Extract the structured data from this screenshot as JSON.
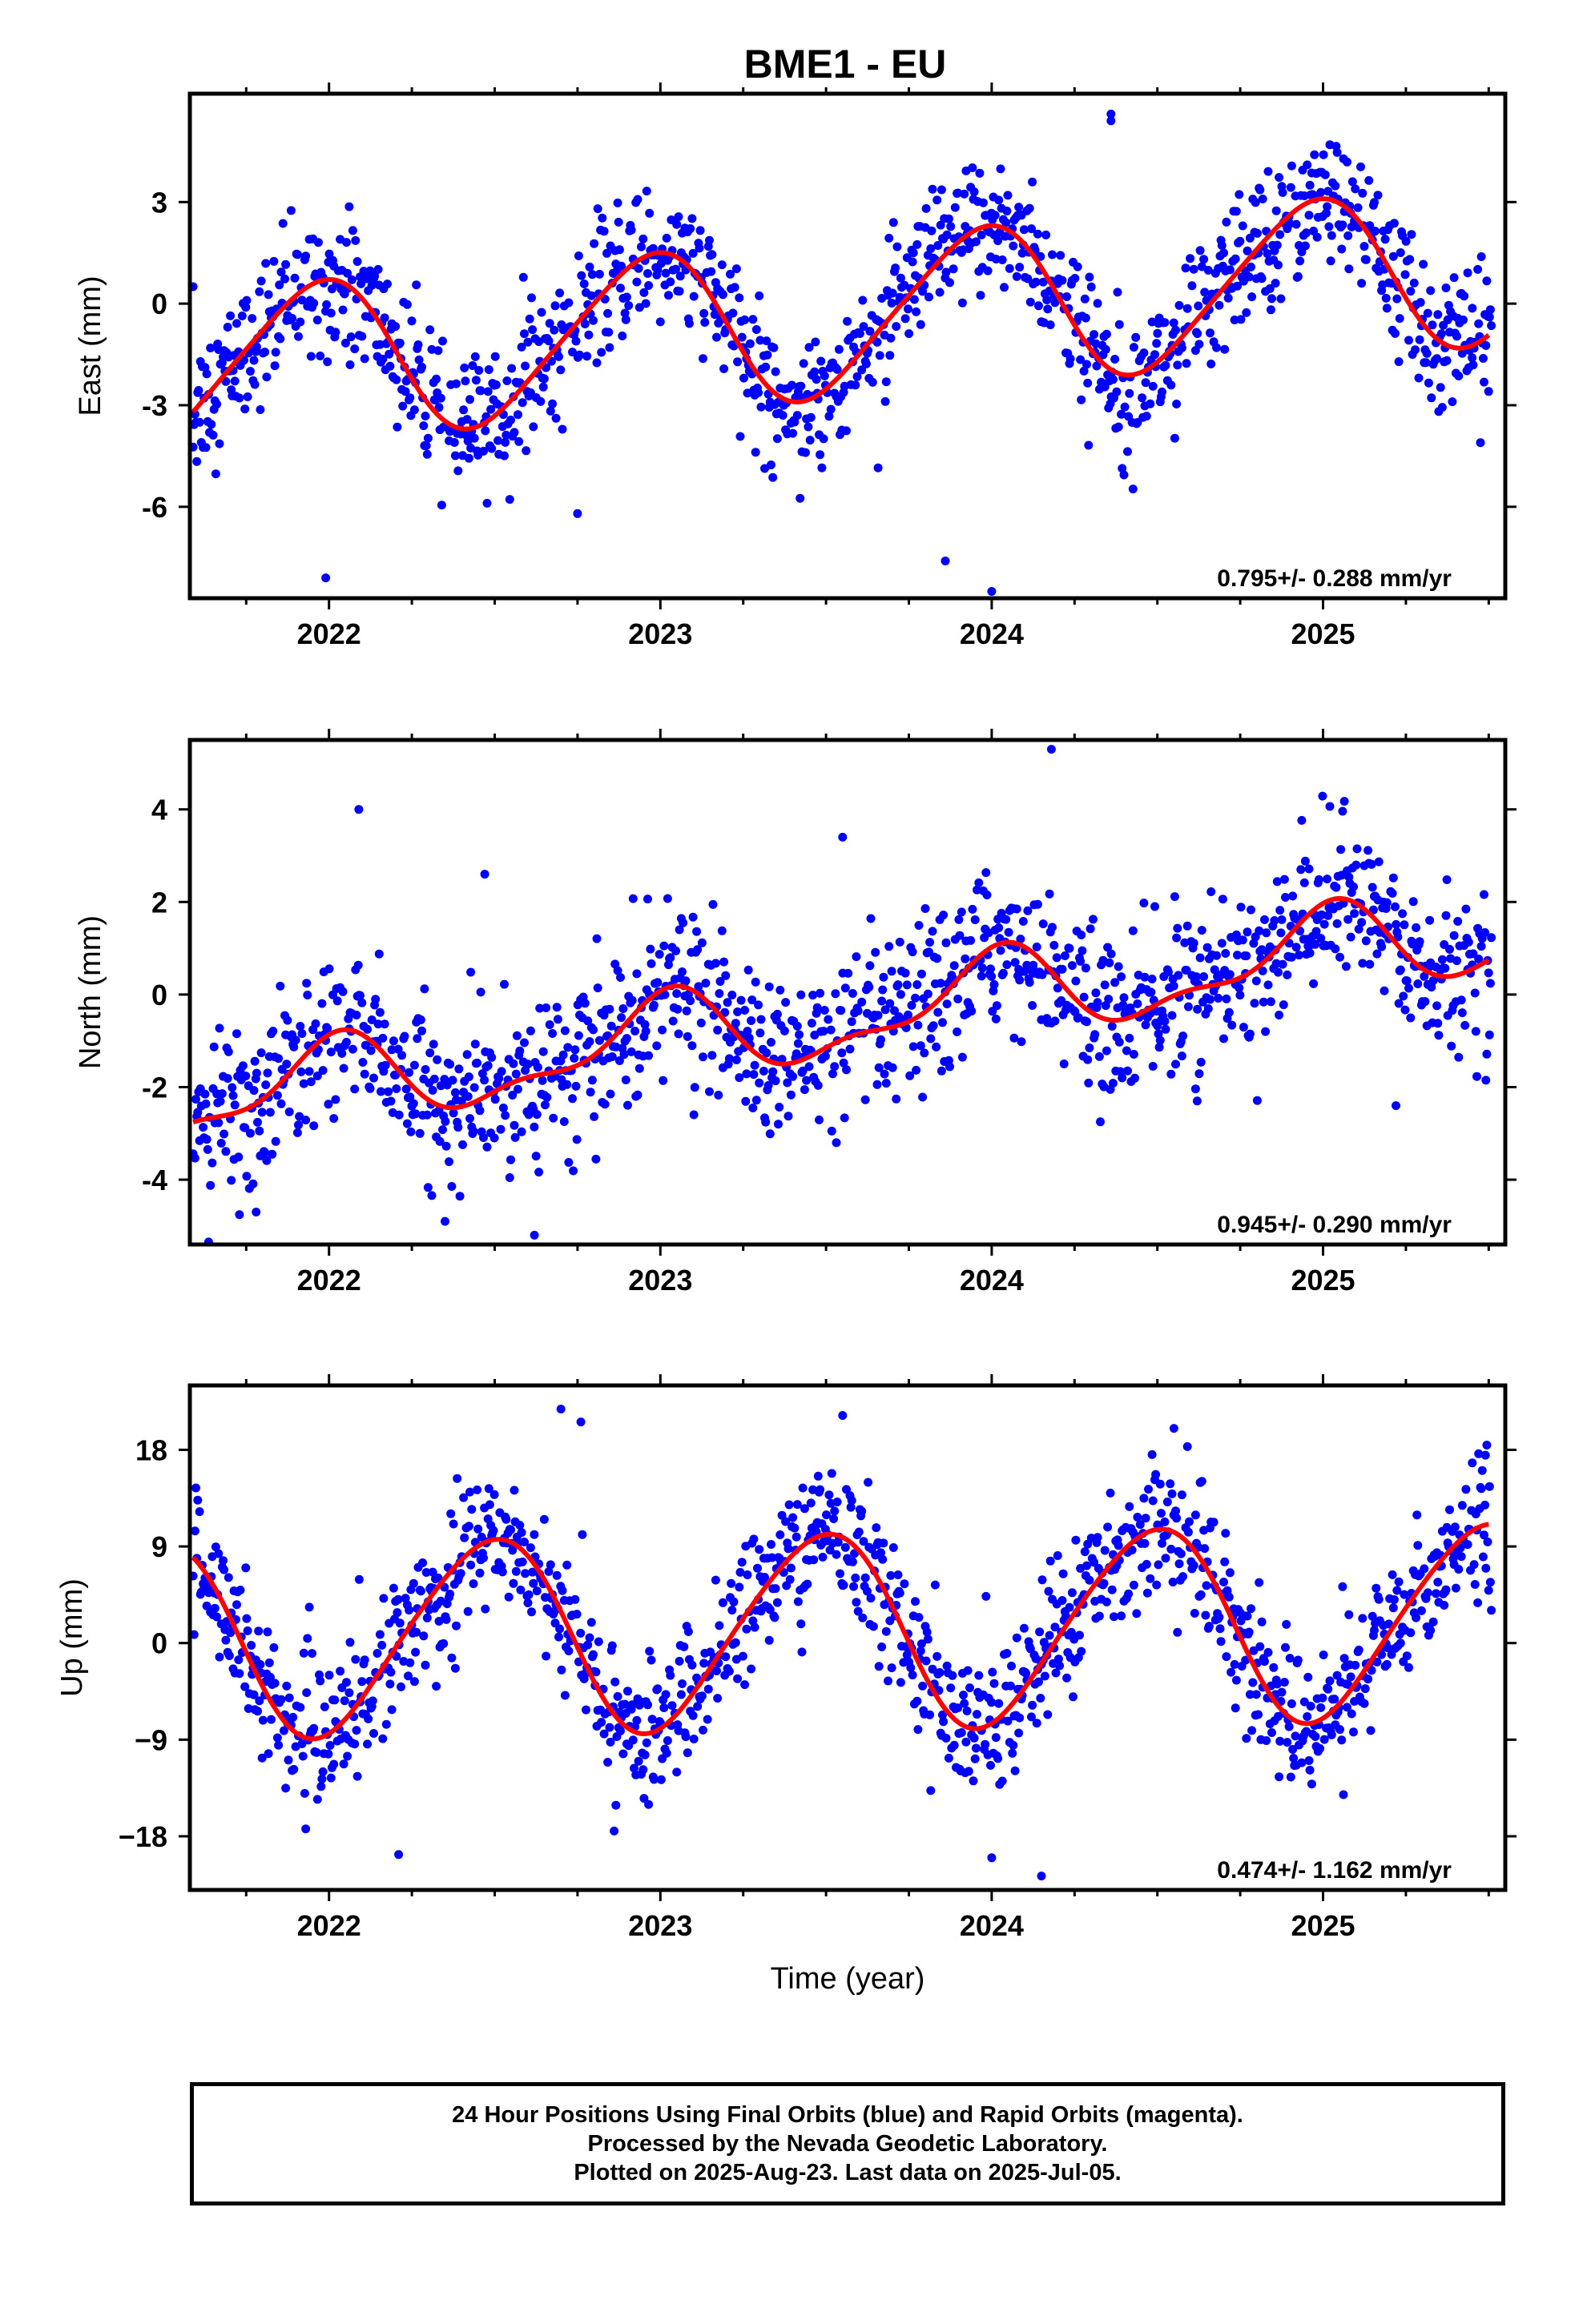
{
  "title": "BME1 - EU",
  "colors": {
    "points": "#0000ff",
    "fit": "#ff0000",
    "frame": "#000000"
  },
  "chart_data": [
    {
      "type": "scatter",
      "name": "east",
      "ylabel": "East (mm)",
      "ylim": [
        -8.7,
        6.2
      ],
      "xlim": [
        2021.58,
        2025.55
      ],
      "yticks": [
        -6,
        -3,
        0,
        3
      ],
      "xticks": [
        2022,
        2023,
        2024,
        2025
      ],
      "rate_text": "0.795+/- 0.288 mm/yr",
      "model": {
        "offset": -0.45,
        "trend": 0.795,
        "a1": 2.3,
        "p1": 1.85,
        "a2": 0.3,
        "p2": 0.5
      },
      "scatter_sd": 1.0,
      "outliers": [
        [
          2021.59,
          0.5
        ],
        [
          2021.99,
          -8.1
        ],
        [
          2022.75,
          -6.2
        ],
        [
          2023.86,
          -7.6
        ],
        [
          2024.0,
          -8.5
        ],
        [
          2024.36,
          5.6
        ],
        [
          2024.36,
          5.4
        ],
        [
          2025.45,
          -1.6
        ]
      ],
      "series": [
        {
          "name": "24 Hour Positions Using Final Orbits (blue)",
          "points_desc": "daily solutions"
        },
        {
          "name": "fit",
          "points_desc": "red model curve"
        }
      ]
    },
    {
      "type": "scatter",
      "name": "north",
      "ylabel": "North (mm)",
      "ylim": [
        -5.4,
        5.5
      ],
      "xlim": [
        2021.58,
        2025.55
      ],
      "yticks": [
        -4,
        -2,
        0,
        2,
        4
      ],
      "xticks": [
        2022,
        2023,
        2024,
        2025
      ],
      "rate_text": "0.945+/- 0.290 mm/yr",
      "model": {
        "offset": -0.55,
        "trend": 0.945,
        "a1": 0.85,
        "p1": 1.55,
        "a2": 0.35,
        "p2": 0.8
      },
      "scatter_sd": 0.85,
      "outliers": [
        [
          2022.09,
          4.0
        ],
        [
          2022.47,
          2.6
        ],
        [
          2022.62,
          -5.2
        ],
        [
          2022.35,
          -4.9
        ],
        [
          2021.78,
          -4.7
        ],
        [
          2024.18,
          5.3
        ],
        [
          2023.55,
          3.4
        ],
        [
          2024.62,
          -2.3
        ],
        [
          2025.22,
          -2.4
        ]
      ],
      "series": [
        {
          "name": "24 Hour Positions Using Final Orbits (blue)",
          "points_desc": "daily solutions"
        },
        {
          "name": "fit",
          "points_desc": "red model curve"
        }
      ]
    },
    {
      "type": "scatter",
      "name": "up",
      "ylabel": "Up (mm)",
      "ylim": [
        -23,
        24
      ],
      "xlim": [
        2021.58,
        2025.55
      ],
      "yticks": [
        -18,
        -9,
        0,
        9,
        18
      ],
      "xticks": [
        2022,
        2023,
        2024,
        2025
      ],
      "xlabel": "Time (year)",
      "rate_text": "0.474+/- 1.162 mm/yr",
      "model": {
        "offset": 1.2,
        "trend": 0.474,
        "a1": 9.0,
        "p1": 4.85,
        "a2": 0.9,
        "p2": 0.0
      },
      "scatter_sd": 3.2,
      "outliers": [
        [
          2022.7,
          21.8
        ],
        [
          2022.76,
          20.6
        ],
        [
          2022.21,
          -19.7
        ],
        [
          2024.0,
          -20.0
        ],
        [
          2024.15,
          -21.7
        ],
        [
          2023.55,
          21.2
        ],
        [
          2024.55,
          20.0
        ],
        [
          2025.49,
          17.5
        ]
      ],
      "series": [
        {
          "name": "24 Hour Positions Using Final Orbits (blue)",
          "points_desc": "daily solutions"
        },
        {
          "name": "fit",
          "points_desc": "red model curve"
        }
      ]
    }
  ],
  "footer": {
    "line1": "24 Hour Positions Using Final Orbits (blue) and Rapid Orbits (magenta).",
    "line2": "Processed by the Nevada Geodetic Laboratory.",
    "line3": "Plotted on 2025-Aug-23. Last data on 2025-Jul-05."
  }
}
